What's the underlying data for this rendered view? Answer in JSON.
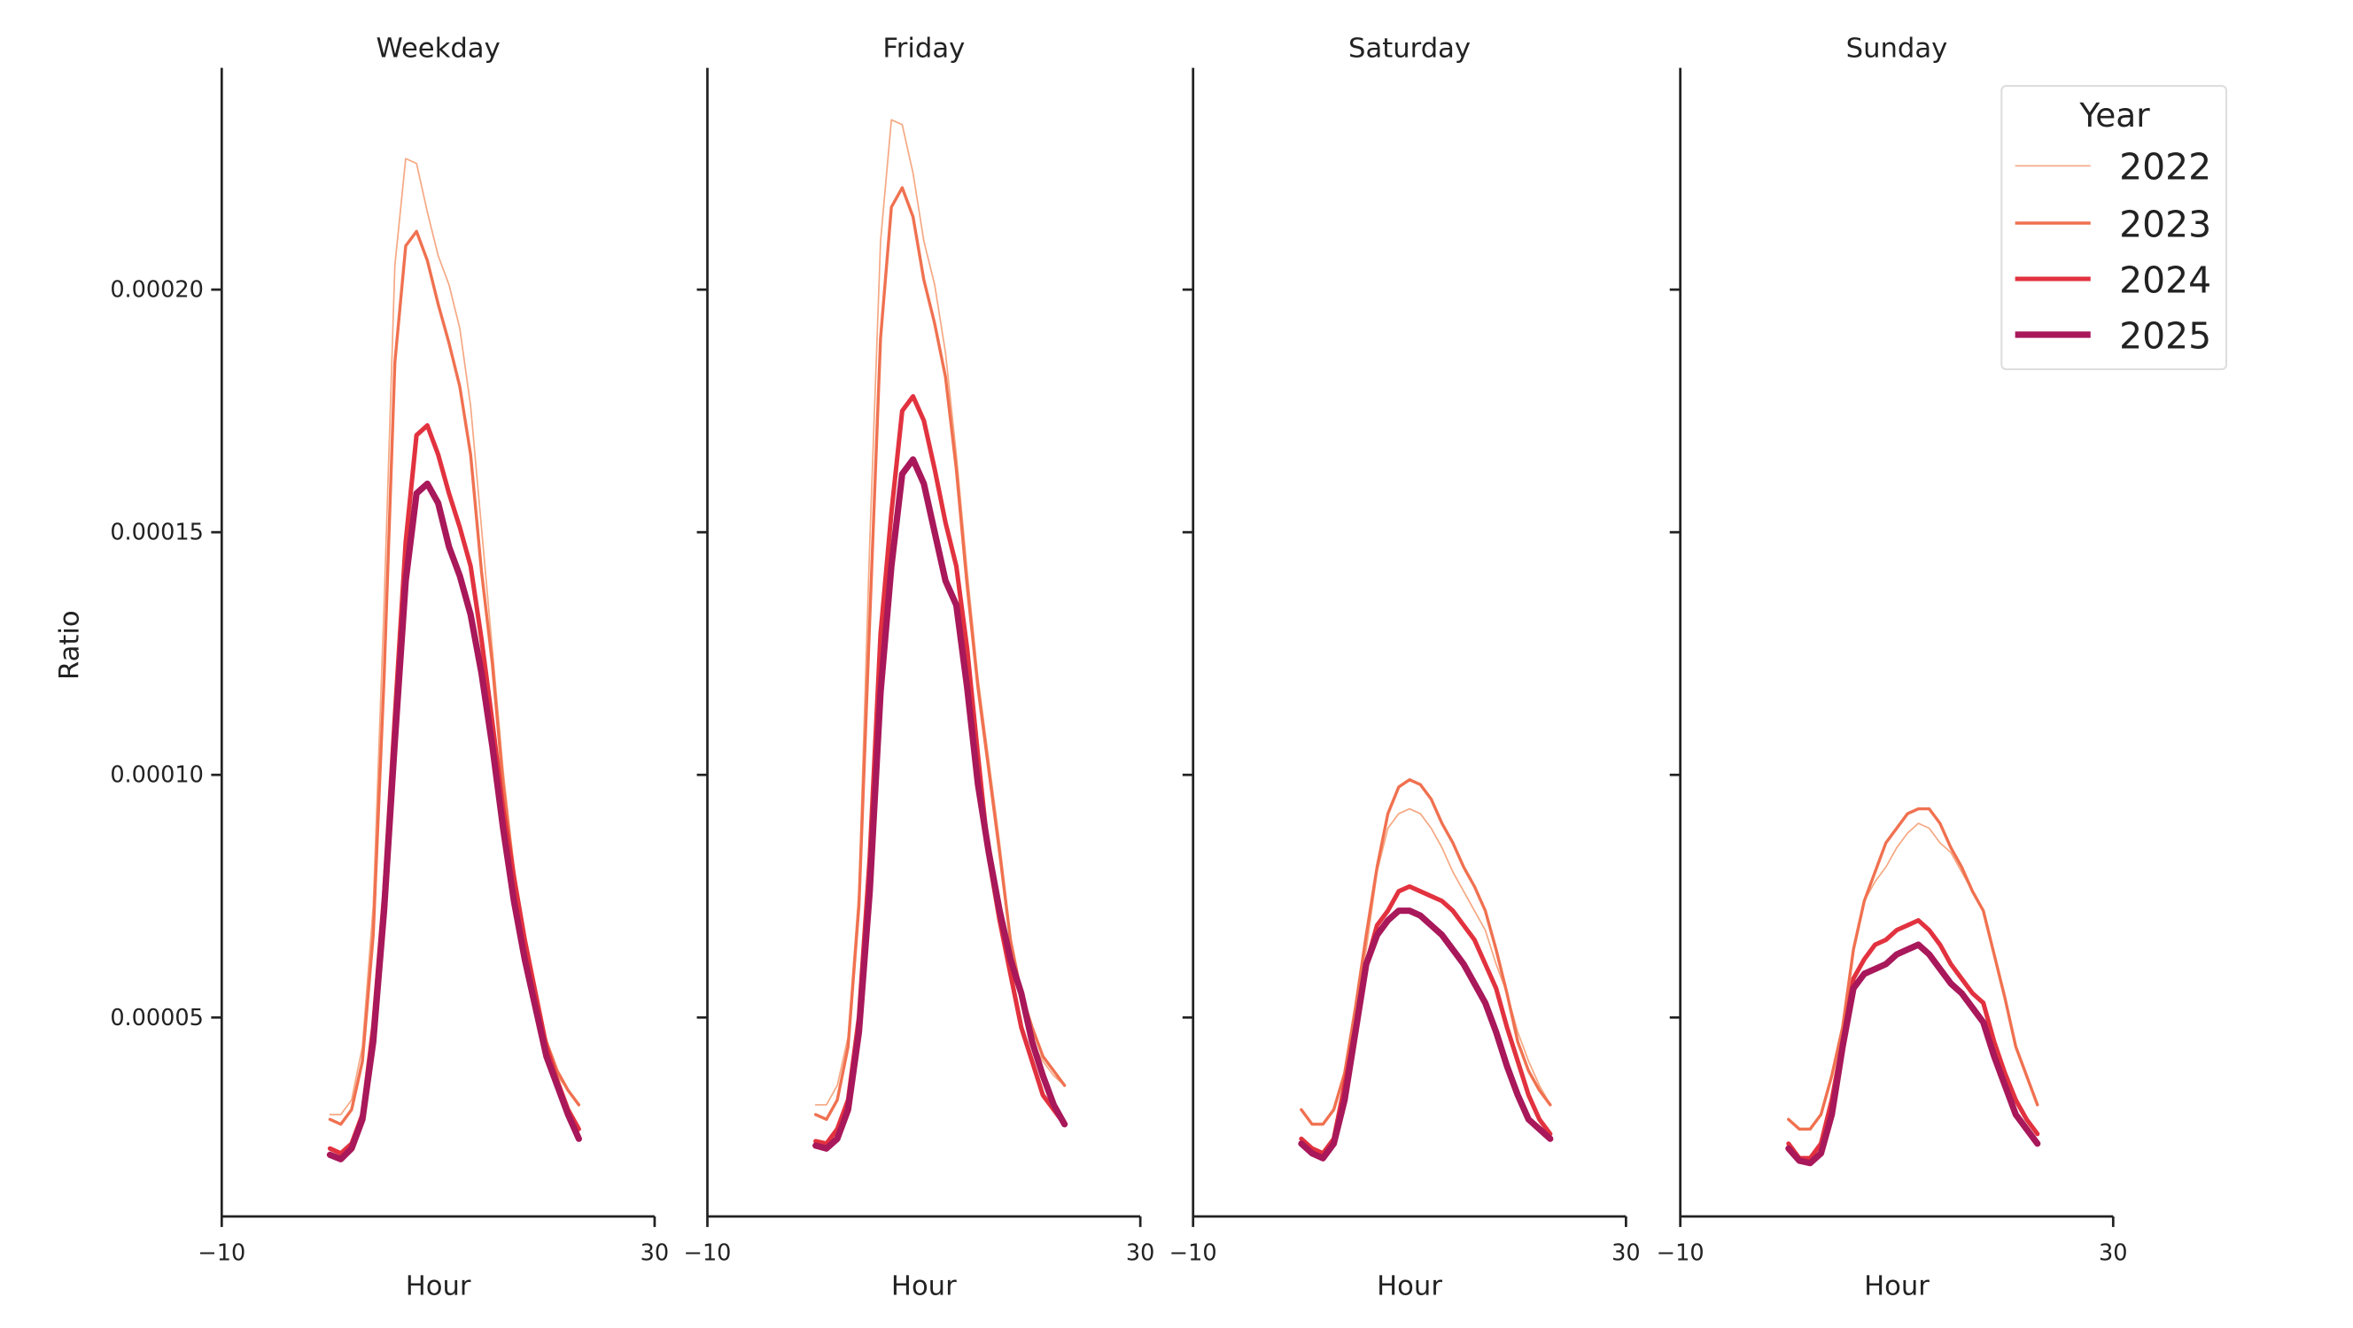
{
  "chart_data": [
    {
      "type": "line",
      "title": "Weekday",
      "xlabel": "Hour",
      "ylabel": "Ratio",
      "xlim": [
        -10,
        30
      ],
      "ylim": [
        9e-06,
        0.0002457
      ],
      "xticks": [
        "−10",
        "30"
      ],
      "xtick_values": [
        -10,
        30
      ],
      "yticks": [
        "0.00005",
        "0.00010",
        "0.00015",
        "0.00020"
      ],
      "ytick_values": [
        5e-05,
        0.0001,
        0.00015,
        0.0002
      ],
      "grid": false,
      "x": [
        0,
        1,
        2,
        3,
        4,
        5,
        6,
        7,
        8,
        9,
        10,
        11,
        12,
        13,
        14,
        15,
        16,
        17,
        18,
        19,
        20,
        21,
        22,
        23
      ],
      "series": [
        {
          "name": "2022",
          "values": [
            3e-05,
            3e-05,
            3.3e-05,
            4.4e-05,
            7.3e-05,
            0.000135,
            0.000205,
            0.000227,
            0.000226,
            0.000216,
            0.000207,
            0.000201,
            0.000192,
            0.000176,
            0.000151,
            0.000126,
            0.000101,
            8.1e-05,
            6.4e-05,
            5.2e-05,
            4.3e-05,
            3.8e-05,
            3.5e-05,
            3.2e-05
          ]
        },
        {
          "name": "2023",
          "values": [
            2.9e-05,
            2.8e-05,
            3.1e-05,
            4.1e-05,
            6.7e-05,
            0.00012,
            0.000185,
            0.000209,
            0.000212,
            0.000206,
            0.000197,
            0.000189,
            0.00018,
            0.000166,
            0.000142,
            0.000123,
            9.8e-05,
            8e-05,
            6.4e-05,
            5.3e-05,
            4.5e-05,
            3.9e-05,
            3.5e-05,
            3.2e-05
          ]
        },
        {
          "name": "2024",
          "values": [
            2.3e-05,
            2.2e-05,
            2.4e-05,
            3e-05,
            4.8e-05,
            7.5e-05,
            0.000112,
            0.000148,
            0.00017,
            0.000172,
            0.000166,
            0.000158,
            0.000151,
            0.000143,
            0.000128,
            0.000111,
            9.3e-05,
            7.9e-05,
            6.6e-05,
            5.5e-05,
            4.4e-05,
            3.7e-05,
            3.1e-05,
            2.7e-05
          ]
        },
        {
          "name": "2025",
          "values": [
            2.17e-05,
            2.08e-05,
            2.3e-05,
            2.9e-05,
            4.5e-05,
            7.2e-05,
            0.000107,
            0.00014,
            0.000158,
            0.00016,
            0.000156,
            0.000147,
            0.000141,
            0.000133,
            0.000121,
            0.000106,
            8.9e-05,
            7.4e-05,
            6.2e-05,
            5.2e-05,
            4.2e-05,
            3.6e-05,
            3e-05,
            2.5e-05
          ]
        }
      ]
    },
    {
      "type": "line",
      "title": "Friday",
      "xlabel": "Hour",
      "xlim": [
        -10,
        30
      ],
      "ylim": [
        9e-06,
        0.0002457
      ],
      "xticks": [
        "−10",
        "30"
      ],
      "xtick_values": [
        -10,
        30
      ],
      "ytick_values": [
        5e-05,
        0.0001,
        0.00015,
        0.0002
      ],
      "grid": false,
      "x": [
        0,
        1,
        2,
        3,
        4,
        5,
        6,
        7,
        8,
        9,
        10,
        11,
        12,
        13,
        14,
        15,
        16,
        17,
        18,
        19,
        20,
        21,
        22,
        23
      ],
      "series": [
        {
          "name": "2022",
          "values": [
            3.2e-05,
            3.2e-05,
            3.6e-05,
            4.6e-05,
            7.6e-05,
            0.000148,
            0.00021,
            0.000235,
            0.000234,
            0.000224,
            0.00021,
            0.000201,
            0.000187,
            0.000166,
            0.000142,
            0.00012,
            0.000103,
            8.6e-05,
            6.7e-05,
            5.3e-05,
            4.5e-05,
            4.1e-05,
            3.8e-05,
            3.6e-05
          ]
        },
        {
          "name": "2023",
          "values": [
            3e-05,
            2.9e-05,
            3.3e-05,
            4.4e-05,
            7.3e-05,
            0.000132,
            0.00019,
            0.000217,
            0.000221,
            0.000215,
            0.000202,
            0.000193,
            0.000182,
            0.000163,
            0.000139,
            0.000118,
            0.000101,
            8.4e-05,
            6.6e-05,
            5.5e-05,
            4.8e-05,
            4.2e-05,
            3.9e-05,
            3.6e-05
          ]
        },
        {
          "name": "2024",
          "values": [
            2.45e-05,
            2.4e-05,
            2.7e-05,
            3.3e-05,
            5e-05,
            8.3e-05,
            0.000129,
            0.000154,
            0.000175,
            0.000178,
            0.000173,
            0.000163,
            0.000152,
            0.000143,
            0.000126,
            0.000104,
            8.3e-05,
            7e-05,
            5.9e-05,
            4.8e-05,
            4.1e-05,
            3.4e-05,
            3.1e-05,
            2.8e-05
          ]
        },
        {
          "name": "2025",
          "values": [
            2.36e-05,
            2.3e-05,
            2.5e-05,
            3.1e-05,
            4.7e-05,
            7.6e-05,
            0.000117,
            0.000143,
            0.000162,
            0.000165,
            0.00016,
            0.00015,
            0.00014,
            0.000135,
            0.000118,
            9.8e-05,
            8.4e-05,
            7.2e-05,
            6.2e-05,
            5.5e-05,
            4.5e-05,
            3.8e-05,
            3.2e-05,
            2.8e-05
          ]
        }
      ]
    },
    {
      "type": "line",
      "title": "Saturday",
      "xlabel": "Hour",
      "xlim": [
        -10,
        30
      ],
      "ylim": [
        9e-06,
        0.0002457
      ],
      "xticks": [
        "−10",
        "30"
      ],
      "xtick_values": [
        -10,
        30
      ],
      "ytick_values": [
        5e-05,
        0.0001,
        0.00015,
        0.0002
      ],
      "grid": false,
      "x": [
        0,
        1,
        2,
        3,
        4,
        5,
        6,
        7,
        8,
        9,
        10,
        11,
        12,
        13,
        14,
        15,
        16,
        17,
        18,
        19,
        20,
        21,
        22,
        23
      ],
      "series": [
        {
          "name": "2022",
          "values": [
            3.1e-05,
            2.8e-05,
            2.8e-05,
            3.1e-05,
            3.85e-05,
            5.2e-05,
            6.4e-05,
            8e-05,
            8.9e-05,
            9.2e-05,
            9.3e-05,
            9.2e-05,
            8.9e-05,
            8.5e-05,
            8e-05,
            7.6e-05,
            7.2e-05,
            6.8e-05,
            6.1e-05,
            5.5e-05,
            4.7e-05,
            4.1e-05,
            3.6e-05,
            3.2e-05
          ]
        },
        {
          "name": "2023",
          "values": [
            3.1e-05,
            2.8e-05,
            2.8e-05,
            3.1e-05,
            3.85e-05,
            5.2e-05,
            6.7e-05,
            8.1e-05,
            9.2e-05,
            9.75e-05,
            9.9e-05,
            9.8e-05,
            9.5e-05,
            9e-05,
            8.6e-05,
            8.1e-05,
            7.7e-05,
            7.2e-05,
            6.4e-05,
            5.5e-05,
            4.5e-05,
            3.9e-05,
            3.5e-05,
            3.2e-05
          ]
        },
        {
          "name": "2024",
          "values": [
            2.5e-05,
            2.3e-05,
            2.2e-05,
            2.5e-05,
            3.6e-05,
            4.8e-05,
            6.1e-05,
            6.9e-05,
            7.2e-05,
            7.6e-05,
            7.7e-05,
            7.6e-05,
            7.5e-05,
            7.4e-05,
            7.2e-05,
            6.9e-05,
            6.6e-05,
            6.1e-05,
            5.6e-05,
            4.8e-05,
            4.1e-05,
            3.4e-05,
            2.9e-05,
            2.6e-05
          ]
        },
        {
          "name": "2025",
          "values": [
            2.4e-05,
            2.2e-05,
            2.1e-05,
            2.4e-05,
            3.3e-05,
            4.7e-05,
            6.1e-05,
            6.7e-05,
            7e-05,
            7.2e-05,
            7.2e-05,
            7.1e-05,
            6.9e-05,
            6.7e-05,
            6.4e-05,
            6.1e-05,
            5.7e-05,
            5.3e-05,
            4.7e-05,
            4e-05,
            3.4e-05,
            2.9e-05,
            2.7e-05,
            2.5e-05
          ]
        }
      ]
    },
    {
      "type": "line",
      "title": "Sunday",
      "xlabel": "Hour",
      "xlim": [
        -10,
        30
      ],
      "ylim": [
        9e-06,
        0.0002457
      ],
      "xticks": [
        "−10",
        "30"
      ],
      "xtick_values": [
        -10,
        30
      ],
      "ytick_values": [
        5e-05,
        0.0001,
        0.00015,
        0.0002
      ],
      "grid": false,
      "x": [
        0,
        1,
        2,
        3,
        4,
        5,
        6,
        7,
        8,
        9,
        10,
        11,
        12,
        13,
        14,
        15,
        16,
        17,
        18,
        19,
        20,
        21,
        22,
        23
      ],
      "series": [
        {
          "name": "2022",
          "values": [
            2.9e-05,
            2.7e-05,
            2.7e-05,
            3e-05,
            3.8e-05,
            4.8e-05,
            6.4e-05,
            7.4e-05,
            7.8e-05,
            8.1e-05,
            8.5e-05,
            8.8e-05,
            9e-05,
            8.9e-05,
            8.6e-05,
            8.4e-05,
            8e-05,
            7.6e-05,
            7.2e-05,
            6.3e-05,
            5.4e-05,
            4.4e-05,
            3.8e-05,
            3.2e-05
          ]
        },
        {
          "name": "2023",
          "values": [
            2.9e-05,
            2.7e-05,
            2.7e-05,
            3e-05,
            3.8e-05,
            4.8e-05,
            6.4e-05,
            7.4e-05,
            8e-05,
            8.6e-05,
            8.9e-05,
            9.2e-05,
            9.3e-05,
            9.3e-05,
            9e-05,
            8.5e-05,
            8.1e-05,
            7.6e-05,
            7.2e-05,
            6.3e-05,
            5.4e-05,
            4.4e-05,
            3.8e-05,
            3.2e-05
          ]
        },
        {
          "name": "2024",
          "values": [
            2.4e-05,
            2.1e-05,
            2.1e-05,
            2.4e-05,
            3.3e-05,
            4.5e-05,
            5.8e-05,
            6.2e-05,
            6.5e-05,
            6.6e-05,
            6.8e-05,
            6.9e-05,
            7e-05,
            6.8e-05,
            6.5e-05,
            6.1e-05,
            5.8e-05,
            5.5e-05,
            5.3e-05,
            4.5e-05,
            3.85e-05,
            3.3e-05,
            2.9e-05,
            2.6e-05
          ]
        },
        {
          "name": "2025",
          "values": [
            2.3e-05,
            2.05e-05,
            2e-05,
            2.2e-05,
            3e-05,
            4.4e-05,
            5.6e-05,
            5.9e-05,
            6e-05,
            6.1e-05,
            6.3e-05,
            6.4e-05,
            6.5e-05,
            6.3e-05,
            6e-05,
            5.7e-05,
            5.5e-05,
            5.2e-05,
            4.9e-05,
            4.2e-05,
            3.6e-05,
            3e-05,
            2.7e-05,
            2.4e-05
          ]
        }
      ]
    }
  ],
  "legend": {
    "title": "Year",
    "placement": "top-right",
    "entries": [
      {
        "label": "2022",
        "color": "#f5a883"
      },
      {
        "label": "2023",
        "color": "#f07150"
      },
      {
        "label": "2024",
        "color": "#e2323f"
      },
      {
        "label": "2025",
        "color": "#a8185a"
      }
    ]
  }
}
